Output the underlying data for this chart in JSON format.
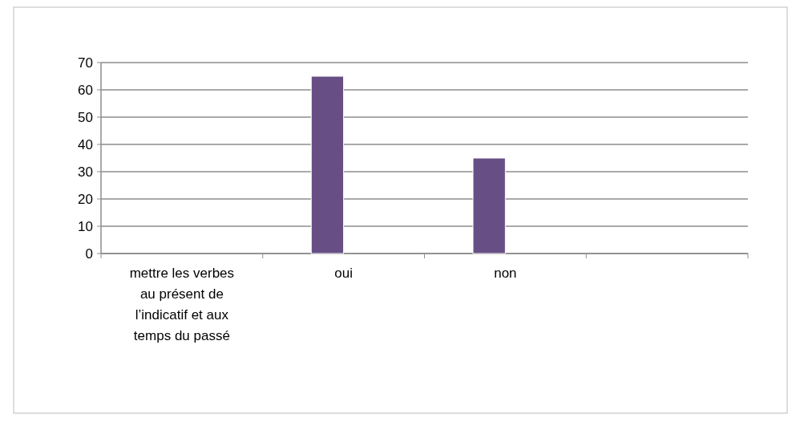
{
  "chart_data": {
    "type": "bar",
    "categories": [
      "mettre les verbes au présent de l’indicatif et aux temps du passé",
      "oui",
      "non",
      null
    ],
    "values": [
      0,
      65,
      35,
      null
    ],
    "color": "#674f86",
    "ylim": [
      0,
      70
    ],
    "yticks": [
      0,
      10,
      20,
      30,
      40,
      50,
      60,
      70
    ],
    "grid": "y"
  }
}
